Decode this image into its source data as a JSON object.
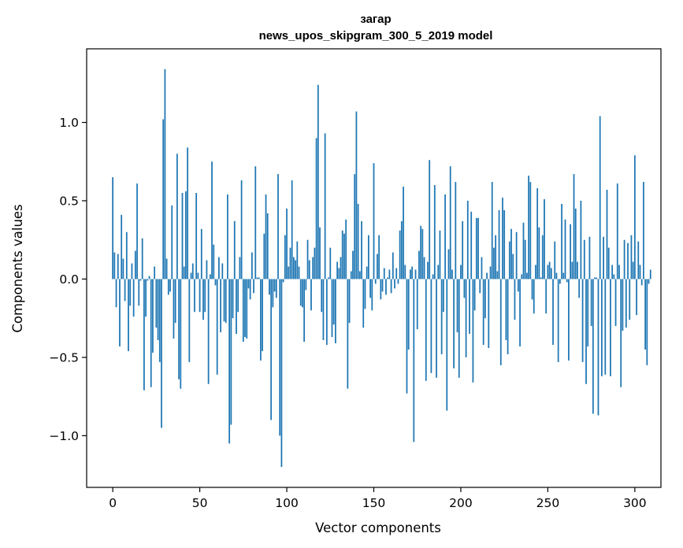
{
  "chart_data": {
    "type": "bar",
    "title": "загар",
    "subtitle": "news_upos_skipgram_300_5_2019 model",
    "xlabel": "Vector components",
    "ylabel": "Components values",
    "xlim": [
      -15,
      315
    ],
    "ylim": [
      -1.33,
      1.47
    ],
    "xticks": [
      0,
      50,
      100,
      150,
      200,
      250,
      300
    ],
    "yticks": [
      -1.0,
      -0.5,
      0.0,
      0.5,
      1.0
    ],
    "xtick_labels": [
      "0",
      "50",
      "100",
      "150",
      "200",
      "250",
      "300"
    ],
    "ytick_labels": [
      "−1.0",
      "−0.5",
      "0.0",
      "0.5",
      "1.0"
    ],
    "grid": false,
    "legend": "none",
    "bar_color": "#1f77b4",
    "values": [
      0.65,
      0.17,
      -0.18,
      0.16,
      -0.43,
      0.41,
      0.13,
      -0.14,
      0.3,
      -0.46,
      -0.17,
      0.1,
      -0.24,
      0.18,
      0.61,
      -0.17,
      -0.01,
      0.26,
      -0.71,
      -0.24,
      -0.01,
      0.02,
      -0.69,
      -0.47,
      0.08,
      -0.31,
      -0.39,
      -0.53,
      -0.95,
      1.02,
      1.34,
      0.13,
      -0.1,
      -0.08,
      0.47,
      -0.38,
      -0.28,
      0.8,
      -0.64,
      -0.7,
      0.55,
      0.08,
      0.56,
      0.84,
      -0.53,
      0.04,
      0.1,
      -0.21,
      0.55,
      0.04,
      -0.21,
      0.32,
      -0.26,
      -0.21,
      0.12,
      -0.67,
      0.03,
      0.75,
      0.22,
      -0.04,
      -0.61,
      0.14,
      -0.34,
      0.1,
      -0.27,
      -0.28,
      0.54,
      -1.05,
      -0.93,
      -0.25,
      0.37,
      -0.35,
      -0.21,
      0.14,
      0.63,
      -0.4,
      -0.37,
      -0.38,
      -0.06,
      -0.13,
      0.17,
      -0.09,
      0.72,
      0.01,
      0.01,
      -0.52,
      -0.46,
      0.29,
      0.54,
      0.42,
      -0.1,
      -0.9,
      -0.18,
      -0.08,
      -0.12,
      0.67,
      -1.0,
      -1.2,
      -0.02,
      0.28,
      0.45,
      0.08,
      0.2,
      0.63,
      0.14,
      0.12,
      0.24,
      0.08,
      -0.17,
      -0.18,
      -0.4,
      -0.07,
      0.25,
      0.12,
      -0.2,
      0.14,
      0.2,
      0.9,
      1.24,
      0.33,
      -0.21,
      -0.39,
      0.93,
      -0.42,
      0.01,
      0.2,
      -0.37,
      -0.29,
      -0.41,
      0.11,
      0.07,
      0.14,
      0.31,
      0.29,
      0.38,
      -0.7,
      -0.28,
      0.05,
      0.18,
      0.67,
      1.07,
      0.48,
      0.05,
      0.37,
      -0.31,
      -0.19,
      0.08,
      0.28,
      -0.12,
      -0.2,
      0.74,
      -0.03,
      0.16,
      0.28,
      -0.13,
      -0.08,
      0.07,
      -0.1,
      0.01,
      0.06,
      -0.09,
      0.17,
      -0.06,
      0.07,
      -0.03,
      0.31,
      0.37,
      0.59,
      0.09,
      -0.73,
      -0.45,
      0.06,
      0.08,
      -1.04,
      0.06,
      -0.32,
      0.18,
      0.34,
      0.32,
      0.14,
      -0.65,
      0.11,
      0.76,
      -0.6,
      0.03,
      0.6,
      -0.63,
      0.09,
      0.31,
      -0.48,
      -0.21,
      0.54,
      -0.84,
      0.19,
      0.72,
      0.06,
      -0.57,
      0.62,
      -0.34,
      -0.63,
      0.09,
      0.37,
      -0.12,
      -0.5,
      0.5,
      -0.35,
      0.43,
      -0.66,
      -0.2,
      0.39,
      0.39,
      -0.09,
      0.14,
      -0.42,
      -0.25,
      0.04,
      -0.44,
      0.08,
      0.62,
      0.2,
      0.28,
      0.05,
      0.44,
      -0.55,
      0.52,
      0.44,
      -0.39,
      -0.48,
      0.24,
      0.32,
      0.16,
      -0.26,
      0.3,
      -0.08,
      -0.43,
      0.03,
      0.36,
      0.25,
      0.04,
      0.66,
      0.62,
      -0.13,
      -0.22,
      0.09,
      0.58,
      0.33,
      0.01,
      0.28,
      0.51,
      -0.22,
      0.09,
      0.11,
      0.07,
      -0.42,
      0.24,
      0.04,
      -0.53,
      -0.03,
      0.48,
      0.04,
      0.38,
      -0.02,
      -0.52,
      0.35,
      0.11,
      0.67,
      0.45,
      0.11,
      -0.12,
      0.5,
      -0.53,
      0.25,
      -0.67,
      -0.43,
      0.27,
      -0.3,
      -0.86,
      0.01,
      0.01,
      -0.87,
      1.04,
      -0.62,
      0.27,
      -0.61,
      0.57,
      0.2,
      -0.62,
      0.09,
      0.03,
      -0.3,
      0.61,
      0.09,
      -0.69,
      -0.33,
      0.25,
      -0.31,
      0.23,
      -0.26,
      0.28,
      0.11,
      0.79,
      -0.23,
      0.24,
      0.09,
      -0.04,
      0.62,
      -0.45,
      -0.55,
      -0.03,
      0.06
    ]
  }
}
